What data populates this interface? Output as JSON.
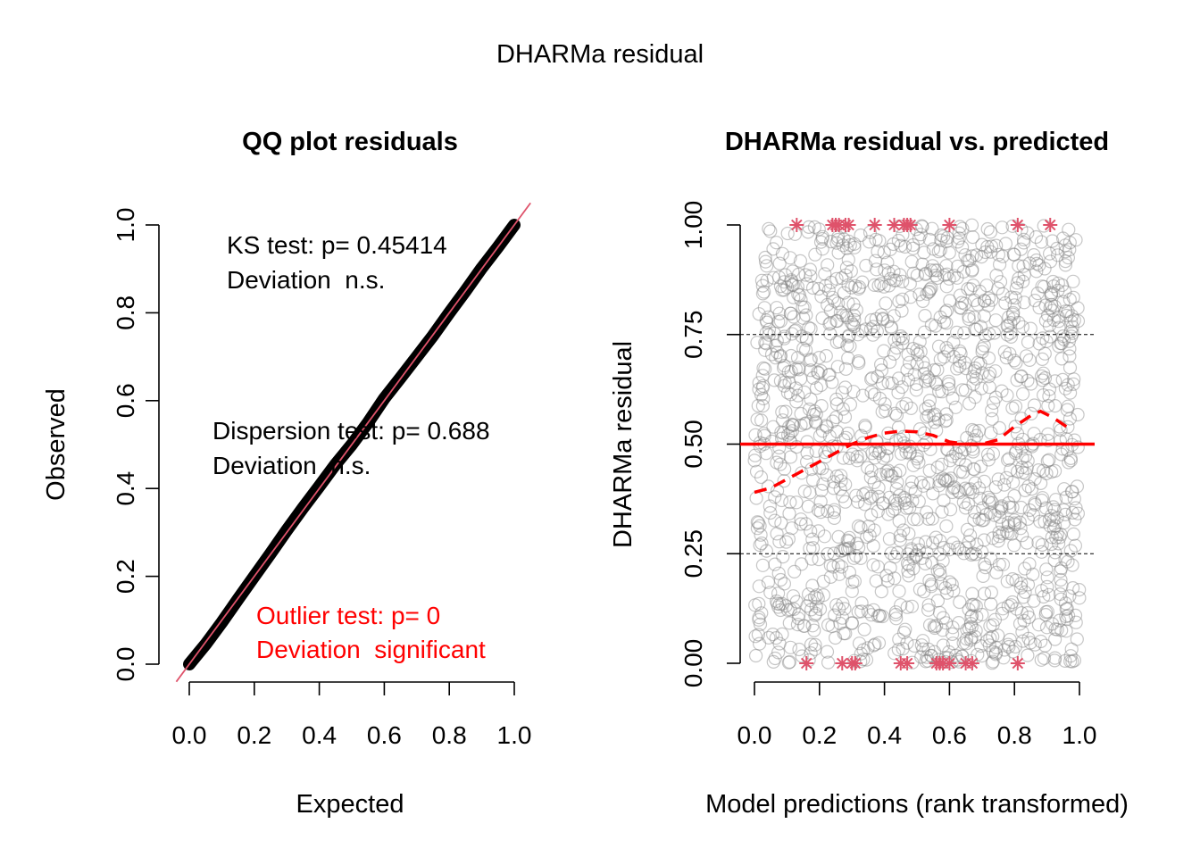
{
  "figure": {
    "main_title": "DHARMa residual"
  },
  "chart_data": [
    {
      "type": "scatter",
      "title": "QQ plot residuals",
      "xlabel": "Expected",
      "ylabel": "Observed",
      "xlim": [
        0,
        1
      ],
      "ylim": [
        0,
        1
      ],
      "x_ticks": [
        "0.0",
        "0.2",
        "0.4",
        "0.6",
        "0.8",
        "1.0"
      ],
      "y_ticks": [
        "0.0",
        "0.2",
        "0.4",
        "0.6",
        "0.8",
        "1.0"
      ],
      "reference_line": {
        "slope": 1,
        "intercept": 0,
        "color": "#df536b"
      },
      "series": [
        {
          "expected": [
            0,
            0.05,
            0.1,
            0.15,
            0.2,
            0.25,
            0.3,
            0.35,
            0.4,
            0.45,
            0.5,
            0.55,
            0.6,
            0.65,
            0.7,
            0.75,
            0.8,
            0.85,
            0.9,
            0.95,
            1.0
          ],
          "observed": [
            0,
            0.045,
            0.095,
            0.148,
            0.2,
            0.252,
            0.305,
            0.356,
            0.405,
            0.455,
            0.5,
            0.55,
            0.605,
            0.652,
            0.7,
            0.748,
            0.8,
            0.85,
            0.902,
            0.95,
            1.0
          ],
          "color": "#000000"
        }
      ],
      "annotations": [
        {
          "lines": [
            "KS test: p= 0.45414",
            "Deviation  n.s."
          ],
          "color": "#000000"
        },
        {
          "lines": [
            "Dispersion test: p= 0.688",
            "Deviation  n.s."
          ],
          "color": "#000000"
        },
        {
          "lines": [
            "Outlier test: p= 0",
            "Deviation  significant"
          ],
          "color": "#ff0000"
        }
      ]
    },
    {
      "type": "scatter",
      "title": "DHARMa residual vs. predicted",
      "xlabel": "Model predictions (rank transformed)",
      "ylabel": "DHARMa residual",
      "xlim": [
        0,
        1
      ],
      "ylim": [
        0,
        1
      ],
      "x_ticks": [
        "0.0",
        "0.2",
        "0.4",
        "0.6",
        "0.8",
        "1.0"
      ],
      "y_ticks": [
        "0.00",
        "0.25",
        "0.50",
        "0.75",
        "1.00"
      ],
      "points": {
        "count": 1500,
        "distribution": "uniform",
        "color": "#808080"
      },
      "outliers": {
        "color": "#df536b",
        "at_1": [
          0.13,
          0.24,
          0.25,
          0.26,
          0.28,
          0.29,
          0.37,
          0.43,
          0.46,
          0.47,
          0.48,
          0.6,
          0.81,
          0.91
        ],
        "at_0": [
          0.16,
          0.27,
          0.3,
          0.31,
          0.45,
          0.47,
          0.56,
          0.57,
          0.58,
          0.6,
          0.65,
          0.67,
          0.81
        ]
      },
      "hlines": [
        {
          "y": 0.25,
          "style": "dashed",
          "color": "#000000"
        },
        {
          "y": 0.5,
          "style": "solid",
          "color": "#ff0000"
        },
        {
          "y": 0.75,
          "style": "dashed",
          "color": "#000000"
        }
      ],
      "smooth": {
        "color": "#ff0000",
        "style": "dashed",
        "x": [
          0,
          0.05,
          0.1,
          0.15,
          0.2,
          0.25,
          0.3,
          0.35,
          0.4,
          0.45,
          0.5,
          0.55,
          0.6,
          0.65,
          0.7,
          0.75,
          0.8,
          0.85,
          0.88,
          0.92,
          0.96
        ],
        "y": [
          0.39,
          0.4,
          0.42,
          0.44,
          0.46,
          0.48,
          0.5,
          0.515,
          0.525,
          0.53,
          0.528,
          0.52,
          0.505,
          0.5,
          0.5,
          0.51,
          0.54,
          0.565,
          0.575,
          0.56,
          0.54
        ]
      }
    }
  ]
}
